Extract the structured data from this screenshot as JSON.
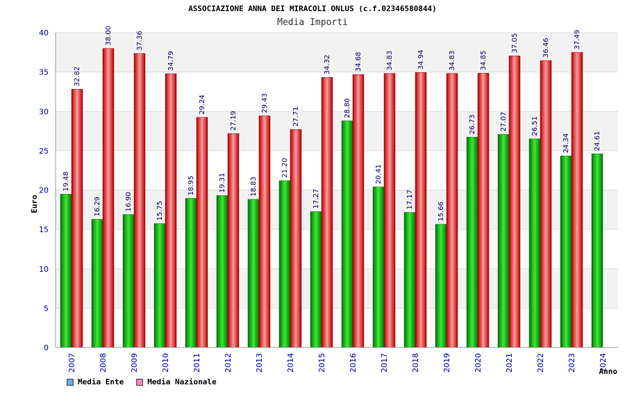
{
  "chart_data": {
    "type": "bar",
    "title": "ASSOCIAZIONE ANNA DEI MIRACOLI ONLUS (c.f.02346580844)",
    "subtitle": "Media Importi",
    "xlabel": "Anno",
    "ylabel": "Euro",
    "ylim": [
      0,
      40
    ],
    "yticks": [
      0,
      5,
      10,
      15,
      20,
      25,
      30,
      35,
      40
    ],
    "categories": [
      "2007",
      "2008",
      "2009",
      "2010",
      "2011",
      "2012",
      "2013",
      "2014",
      "2015",
      "2016",
      "2017",
      "2018",
      "2019",
      "2020",
      "2021",
      "2022",
      "2023",
      "2024"
    ],
    "series": [
      {
        "name": "Media Ente",
        "color": "#11aa11",
        "values": [
          19.48,
          16.29,
          16.9,
          15.75,
          18.95,
          19.31,
          18.83,
          21.2,
          17.27,
          28.8,
          20.41,
          17.17,
          15.66,
          26.73,
          27.07,
          26.51,
          24.34,
          24.61
        ],
        "labels": [
          "19.48",
          "16.29",
          "16.90",
          "15.75",
          "18.95",
          "19.31",
          "18.83",
          "21.20",
          "17.27",
          "28.80",
          "20.41",
          "17.17",
          "15.66",
          "26.73",
          "27.07",
          "26.51",
          "24.34",
          "24.61"
        ]
      },
      {
        "name": "Media Nazionale",
        "color": "#dd1111",
        "values": [
          32.82,
          38.0,
          37.36,
          34.79,
          29.24,
          27.19,
          29.43,
          27.71,
          34.32,
          34.68,
          34.83,
          34.94,
          34.83,
          34.85,
          37.05,
          36.46,
          37.49,
          null
        ],
        "labels": [
          "32.82",
          "38.00",
          "37.36",
          "34.79",
          "29.24",
          "27.19",
          "29.43",
          "27.71",
          "34.32",
          "34.68",
          "34.83",
          "34.94",
          "34.83",
          "34.85",
          "37.05",
          "36.46",
          "37.49",
          ""
        ]
      }
    ],
    "legend": [
      {
        "label": "Media Ente",
        "color": "#66aaee"
      },
      {
        "label": "Media Nazionale",
        "color": "#ee88bb"
      }
    ],
    "grid": true,
    "legend_position": "bottom-left"
  }
}
